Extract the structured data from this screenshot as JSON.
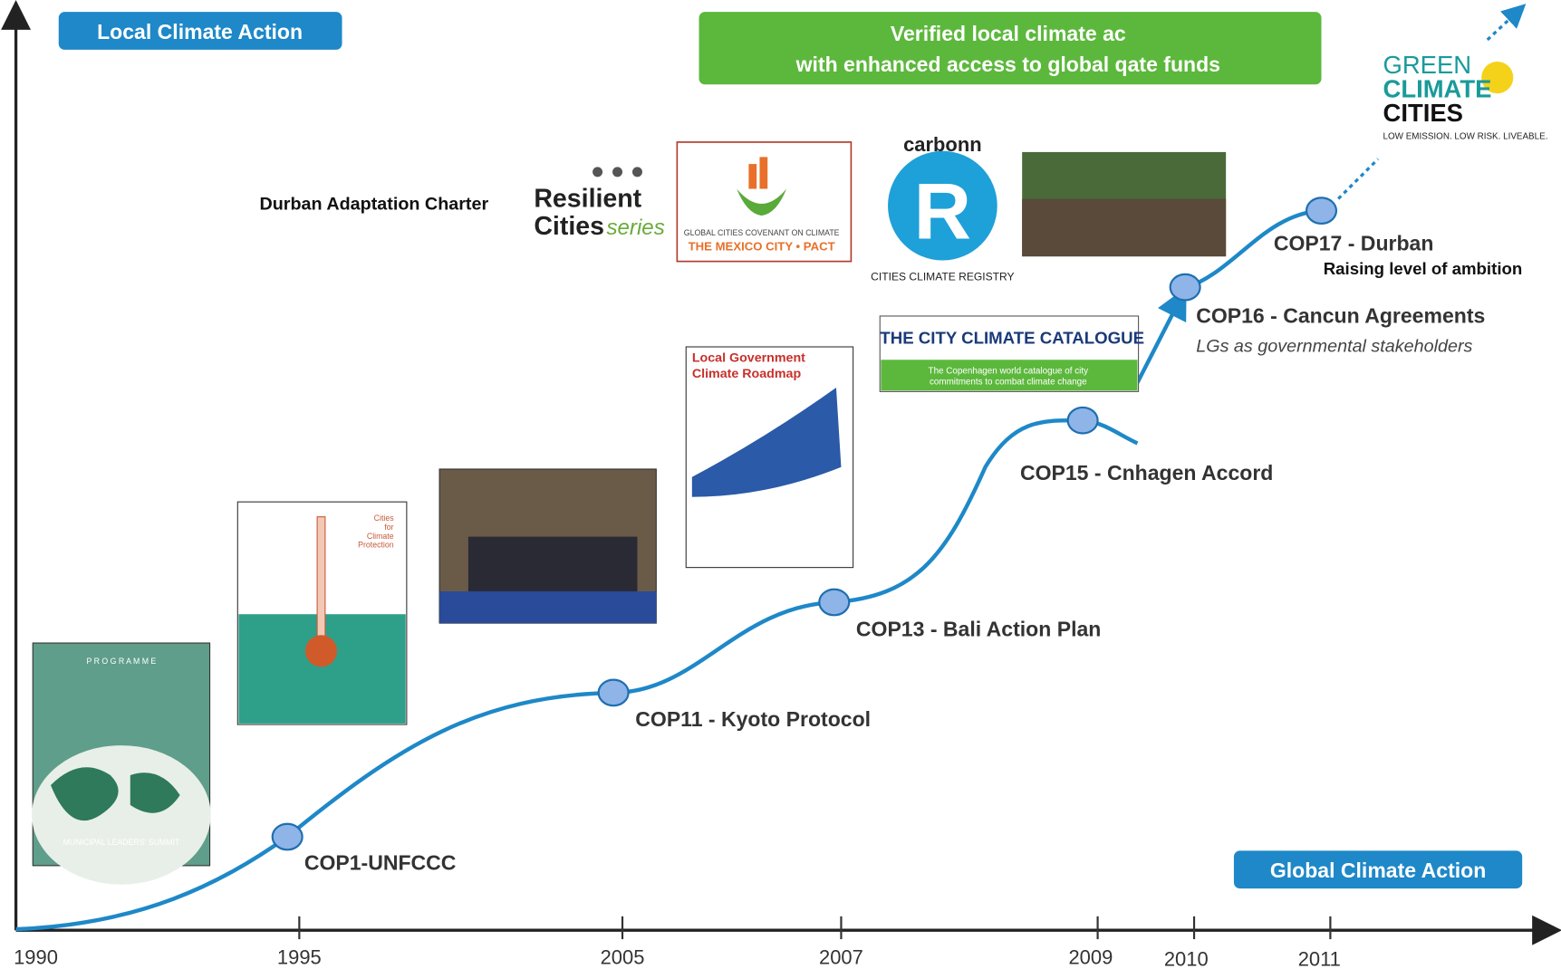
{
  "header": {
    "local_action": "Local Climate Action",
    "global_action": "Global Climate Action",
    "banner": [
      "Verified local climate ac",
      "with enhanced access to global qate funds"
    ]
  },
  "milestones": [
    {
      "label": "COP1-UNFCCC"
    },
    {
      "label": "COP11 - Kyoto Protocol"
    },
    {
      "label": "COP13 - Bali Action Plan"
    },
    {
      "label": "COP15 - Cnhagen Accord"
    },
    {
      "label": "COP16 - Cancun Agreements",
      "note": "LGs as governmental stakeholders"
    },
    {
      "label": "COP17 - Durban",
      "note": "Raising level of ambition"
    }
  ],
  "axis_years": [
    "1990",
    "1995",
    "2005",
    "2007",
    "2009",
    "2010",
    "2011"
  ],
  "logos": {
    "durban": "Durban Adaptation Charter",
    "resilient": [
      "Resilient",
      "Cities",
      "series"
    ],
    "mexico": [
      "GLOBAL CITIES COVENANT ON CLIMATE",
      "THE MEXICO CITY • PACT"
    ],
    "carbonn": [
      "carbonn",
      "R",
      "CITIES CLIMATE REGISTRY"
    ],
    "catalogue": [
      "THE CITY CLIMATE CATALOGUE",
      "The Copenhagen world catalogue of city",
      "commitments to combat climate change"
    ],
    "roadmap": [
      "Local Government",
      "Climate Roadmap"
    ],
    "cities_protection": [
      "Cities",
      "for",
      "Climate",
      "Protection"
    ],
    "programme": [
      "P R O G R A M M E",
      "MUNICIPAL LEADERS' SUMMIT"
    ],
    "green": [
      "GREEN",
      "CLIMATE",
      "CITIES",
      "LOW EMISSION. LOW RISK. LIVEABLE."
    ]
  }
}
